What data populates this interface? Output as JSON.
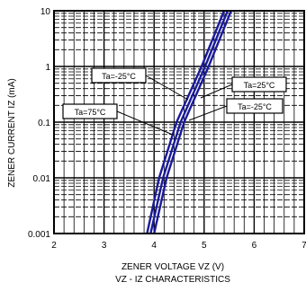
{
  "chart_data": {
    "type": "line",
    "title": "",
    "subtitle": "VZ - IZ CHARACTERISTICS",
    "xlabel": "ZENER VOLTAGE VZ (V)",
    "ylabel": "ZENER CURRENT IZ (mA)",
    "x_ticks": [
      "2",
      "3",
      "4",
      "5",
      "6",
      "7"
    ],
    "y_ticks": [
      "10",
      "1",
      "0.1",
      "0.01",
      "0.001"
    ],
    "xlim": [
      2,
      7
    ],
    "ylim": [
      0.001,
      10
    ],
    "y_scale": "log",
    "grid": true,
    "series": [
      {
        "name": "Ta=-25°C",
        "x": [
          3.86,
          4.1,
          4.45,
          4.95,
          5.4
        ],
        "y": [
          0.001,
          0.01,
          0.1,
          1,
          10
        ]
      },
      {
        "name": "Ta=25°C",
        "x": [
          3.93,
          4.18,
          4.53,
          5.02,
          5.47
        ],
        "y": [
          0.001,
          0.01,
          0.1,
          1,
          10
        ]
      },
      {
        "name": "Ta=75°C",
        "x": [
          4.0,
          4.25,
          4.6,
          5.09,
          5.54
        ],
        "y": [
          0.001,
          0.01,
          0.1,
          1,
          10
        ]
      }
    ],
    "annotations": [
      "Ta=-25°C",
      "Ta=25°C",
      "Ta=75°C",
      "Ta=-25°C"
    ]
  }
}
